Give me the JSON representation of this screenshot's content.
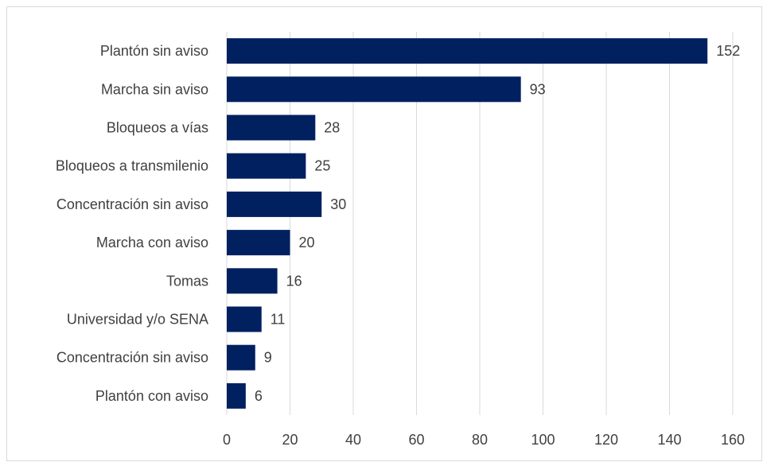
{
  "chart_data": {
    "type": "bar",
    "orientation": "horizontal",
    "title": "",
    "xlabel": "",
    "ylabel": "",
    "categories": [
      "Plantón sin aviso",
      "Marcha sin aviso",
      "Bloqueos a vías",
      "Bloqueos a transmilenio",
      "Concentración sin aviso",
      "Marcha con aviso",
      "Tomas",
      "Universidad y/o SENA",
      "Concentración sin aviso",
      "Plantón con aviso"
    ],
    "values": [
      152,
      93,
      28,
      25,
      30,
      20,
      16,
      11,
      9,
      6
    ],
    "xlim": [
      0,
      160
    ],
    "xticks": [
      0,
      20,
      40,
      60,
      80,
      100,
      120,
      140,
      160
    ],
    "grid": "vertical",
    "data_labels": true,
    "bar_color": "#002060"
  }
}
